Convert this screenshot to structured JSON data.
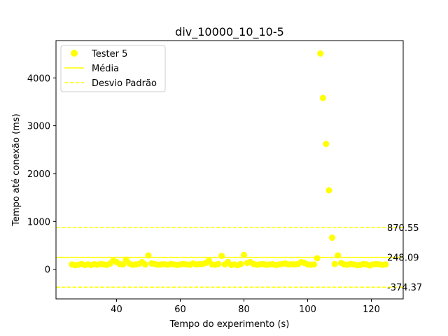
{
  "chart_data": {
    "type": "scatter",
    "title": "div_10000_10_10-5",
    "xlabel": "Tempo do experimento (s)",
    "ylabel": "Tempo até conexão (ms)",
    "xlim": [
      21,
      130
    ],
    "ylim": [
      -620,
      4780
    ],
    "xticks": [
      40,
      60,
      80,
      100,
      120
    ],
    "yticks": [
      0,
      1000,
      2000,
      3000,
      4000
    ],
    "grid": false,
    "legend_position": "top-left",
    "colors": {
      "series": "#ffff00",
      "axis": "#000000",
      "background": "#ffffff"
    },
    "legend": {
      "scatter_label": "Tester 5",
      "mean_label": "Média",
      "std_label": "Desvio Padrão"
    },
    "series": [
      {
        "name": "Tester 5",
        "points": [
          [
            26,
            100
          ],
          [
            27,
            85
          ],
          [
            28,
            95
          ],
          [
            29,
            110
          ],
          [
            30,
            90
          ],
          [
            31,
            100
          ],
          [
            32,
            88
          ],
          [
            33,
            105
          ],
          [
            34,
            95
          ],
          [
            35,
            110
          ],
          [
            36,
            100
          ],
          [
            37,
            92
          ],
          [
            38,
            120
          ],
          [
            39,
            180
          ],
          [
            40,
            150
          ],
          [
            41,
            110
          ],
          [
            42,
            100
          ],
          [
            43,
            200
          ],
          [
            44,
            120
          ],
          [
            45,
            95
          ],
          [
            46,
            100
          ],
          [
            47,
            110
          ],
          [
            48,
            150
          ],
          [
            49,
            100
          ],
          [
            50,
            290
          ],
          [
            51,
            120
          ],
          [
            52,
            110
          ],
          [
            53,
            95
          ],
          [
            54,
            100
          ],
          [
            55,
            105
          ],
          [
            56,
            95
          ],
          [
            57,
            110
          ],
          [
            58,
            100
          ],
          [
            59,
            90
          ],
          [
            60,
            100
          ],
          [
            61,
            110
          ],
          [
            62,
            100
          ],
          [
            63,
            95
          ],
          [
            64,
            120
          ],
          [
            65,
            100
          ],
          [
            66,
            105
          ],
          [
            67,
            110
          ],
          [
            68,
            130
          ],
          [
            69,
            180
          ],
          [
            70,
            100
          ],
          [
            71,
            95
          ],
          [
            72,
            110
          ],
          [
            73,
            280
          ],
          [
            74,
            100
          ],
          [
            75,
            150
          ],
          [
            76,
            90
          ],
          [
            77,
            100
          ],
          [
            78,
            85
          ],
          [
            79,
            110
          ],
          [
            80,
            300
          ],
          [
            81,
            130
          ],
          [
            82,
            150
          ],
          [
            83,
            110
          ],
          [
            84,
            95
          ],
          [
            85,
            100
          ],
          [
            86,
            110
          ],
          [
            87,
            95
          ],
          [
            88,
            100
          ],
          [
            89,
            105
          ],
          [
            90,
            90
          ],
          [
            91,
            100
          ],
          [
            92,
            110
          ],
          [
            93,
            120
          ],
          [
            94,
            100
          ],
          [
            95,
            105
          ],
          [
            96,
            100
          ],
          [
            97,
            110
          ],
          [
            98,
            150
          ],
          [
            99,
            130
          ],
          [
            100,
            100
          ],
          [
            101,
            95
          ],
          [
            102,
            100
          ],
          [
            103,
            230
          ],
          [
            104,
            4510
          ],
          [
            104.8,
            3580
          ],
          [
            105.8,
            2620
          ],
          [
            106.7,
            1650
          ],
          [
            107.7,
            660
          ],
          [
            108.5,
            110
          ],
          [
            109.5,
            290
          ],
          [
            110.5,
            130
          ],
          [
            111.5,
            100
          ],
          [
            112.5,
            95
          ],
          [
            113.5,
            110
          ],
          [
            114.5,
            100
          ],
          [
            115.5,
            85
          ],
          [
            116.5,
            90
          ],
          [
            117.5,
            110
          ],
          [
            118.5,
            100
          ],
          [
            119.5,
            80
          ],
          [
            120.5,
            100
          ],
          [
            121.5,
            110
          ],
          [
            122.5,
            100
          ],
          [
            123.5,
            95
          ],
          [
            124.5,
            100
          ]
        ]
      }
    ],
    "reference_lines": [
      {
        "kind": "mean",
        "value": 248.09,
        "label": "248.09",
        "style": "solid"
      },
      {
        "kind": "std_upper",
        "value": 870.55,
        "label": "870.55",
        "style": "dashed"
      },
      {
        "kind": "std_lower",
        "value": -374.37,
        "label": "-374.37",
        "style": "dashed"
      }
    ]
  }
}
